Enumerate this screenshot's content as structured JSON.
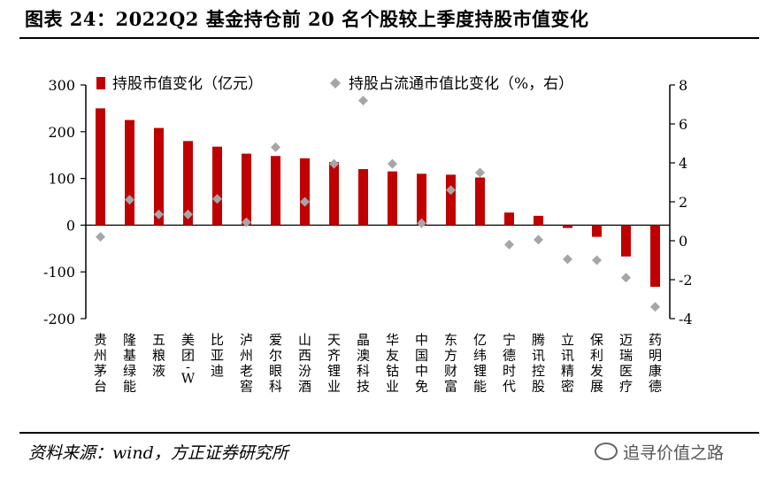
{
  "title": "图表 24：2022Q2 基金持仓前 20 名个股较上季度持股市值变化",
  "source": "资料来源：wind，方正证券研究所",
  "watermark": "追寻价值之路",
  "colors": {
    "bar": "#C00000",
    "marker": "#A6A6A6",
    "axis": "#000000"
  },
  "chart_data": {
    "type": "bar",
    "title": "图表 24：2022Q2 基金持仓前 20 名个股较上季度持股市值变化",
    "categories": [
      "贵州茅台",
      "隆基绿能",
      "五粮液",
      "美团-W",
      "比亚迪",
      "泸州老窖",
      "爱尔眼科",
      "山西汾酒",
      "天齐锂业",
      "晶澳科技",
      "华友钴业",
      "中国中免",
      "东方财富",
      "亿纬锂能",
      "宁德时代",
      "腾讯控股",
      "立讯精密",
      "保利发展",
      "迈瑞医疗",
      "药明康德"
    ],
    "series": [
      {
        "name": "持股市值变化（亿元）",
        "axis": "left",
        "kind": "bar",
        "values": [
          250,
          225,
          208,
          180,
          168,
          153,
          148,
          143,
          135,
          120,
          115,
          110,
          108,
          102,
          27,
          20,
          -6,
          -25,
          -67,
          -132
        ]
      },
      {
        "name": "持股占流通市值比变化（%，右）",
        "axis": "right",
        "kind": "scatter",
        "values": [
          0.2,
          2.1,
          1.35,
          1.35,
          2.15,
          0.95,
          4.8,
          2.0,
          3.95,
          7.2,
          3.95,
          0.9,
          2.6,
          3.5,
          -0.2,
          0.05,
          -0.95,
          -1.0,
          -1.9,
          -3.4
        ]
      }
    ],
    "left_axis": {
      "min": -200,
      "max": 300,
      "ticks": [
        300,
        200,
        100,
        0,
        -100,
        -200
      ],
      "tick_labels": [
        "300",
        "200",
        "100",
        "0",
        "-100",
        "-200"
      ]
    },
    "right_axis": {
      "min": -4,
      "max": 8,
      "ticks": [
        8,
        6,
        4,
        2,
        0,
        -2,
        -4
      ],
      "tick_labels": [
        "8",
        "6",
        "4",
        "2",
        "0",
        "-2",
        "-4"
      ]
    },
    "grid": false,
    "legend_position": "top"
  }
}
